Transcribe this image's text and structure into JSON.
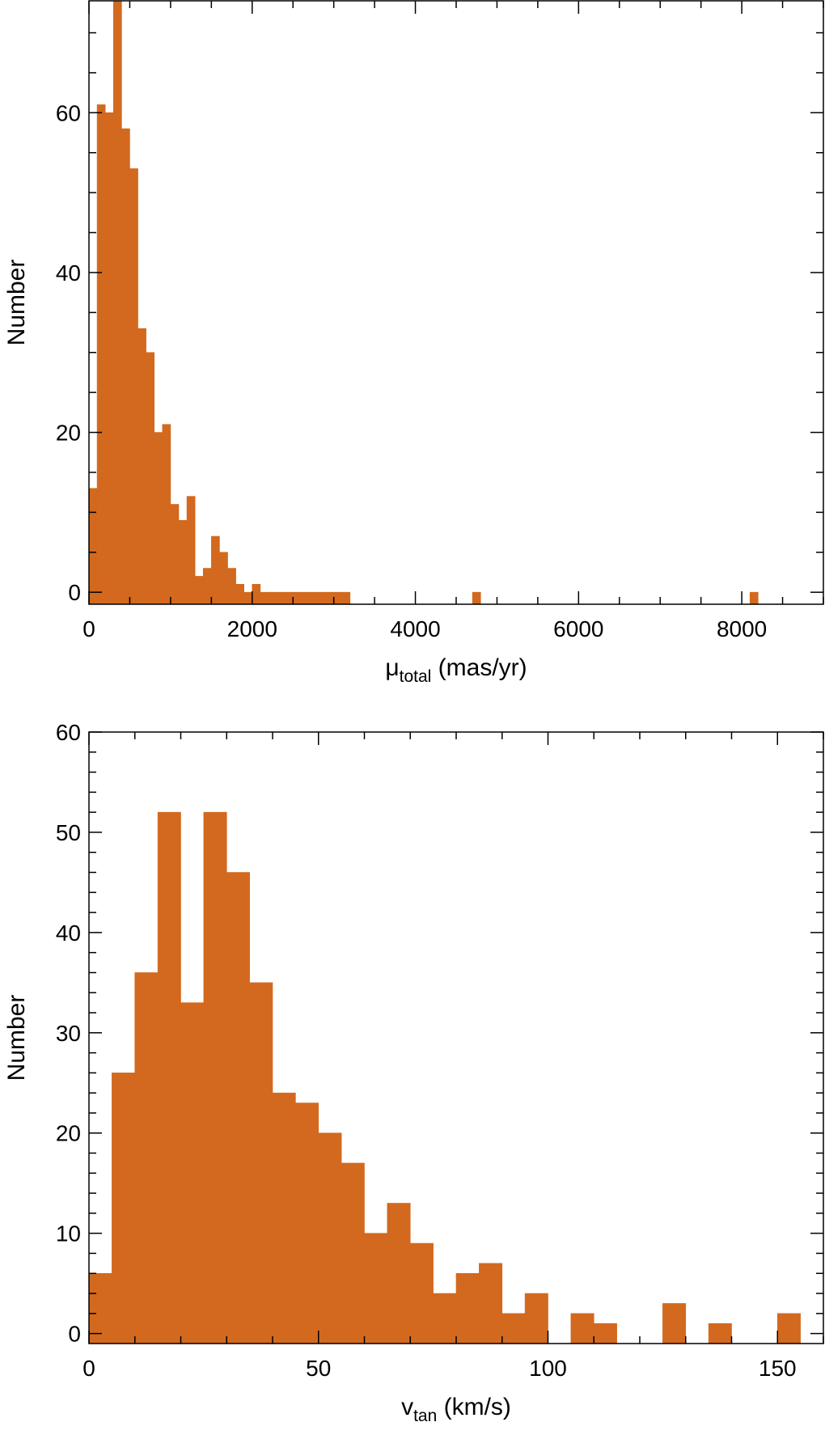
{
  "chart_data": [
    {
      "type": "bar",
      "id": "proper-motion-histogram",
      "title": "",
      "xlabel_main": "μ",
      "xlabel_sub": "total",
      "xlabel_rest": " (mas/yr)",
      "ylabel": "Number",
      "xlim": [
        0,
        9000
      ],
      "ylim": [
        -1.5,
        74
      ],
      "bin_width": 100,
      "x_ticks": [
        0,
        2000,
        4000,
        6000,
        8000
      ],
      "x_tick_labels": [
        "0",
        "2000",
        "4000",
        "6000",
        "8000"
      ],
      "x_minor_step": 500,
      "y_ticks": [
        0,
        20,
        40,
        60
      ],
      "y_tick_labels": [
        "0",
        "20",
        "40",
        "60"
      ],
      "y_minor_step": 5,
      "bins": [
        {
          "x": 0,
          "count": 13
        },
        {
          "x": 100,
          "count": 61
        },
        {
          "x": 200,
          "count": 60
        },
        {
          "x": 300,
          "count": 74
        },
        {
          "x": 400,
          "count": 58
        },
        {
          "x": 500,
          "count": 53
        },
        {
          "x": 600,
          "count": 33
        },
        {
          "x": 700,
          "count": 30
        },
        {
          "x": 800,
          "count": 20
        },
        {
          "x": 900,
          "count": 21
        },
        {
          "x": 1000,
          "count": 11
        },
        {
          "x": 1100,
          "count": 9
        },
        {
          "x": 1200,
          "count": 12
        },
        {
          "x": 1300,
          "count": 2
        },
        {
          "x": 1400,
          "count": 3
        },
        {
          "x": 1500,
          "count": 7
        },
        {
          "x": 1600,
          "count": 5
        },
        {
          "x": 1700,
          "count": 3
        },
        {
          "x": 1800,
          "count": 1
        },
        {
          "x": 1900,
          "count": 0
        },
        {
          "x": 2000,
          "count": 1
        },
        {
          "x": 2100,
          "count": 0
        },
        {
          "x": 2200,
          "count": 0
        },
        {
          "x": 2300,
          "count": 0
        },
        {
          "x": 2400,
          "count": 0
        },
        {
          "x": 2500,
          "count": 0
        },
        {
          "x": 2600,
          "count": 0
        },
        {
          "x": 2700,
          "count": 0
        },
        {
          "x": 2800,
          "count": 0
        },
        {
          "x": 2900,
          "count": 0
        },
        {
          "x": 3000,
          "count": 0
        },
        {
          "x": 3100,
          "count": 0
        },
        {
          "x": 4700,
          "count": 0
        },
        {
          "x": 8100,
          "count": 0
        }
      ],
      "bar_color": "#d2691e",
      "grid": false
    },
    {
      "type": "bar",
      "id": "tangential-velocity-histogram",
      "title": "",
      "xlabel_main": "v",
      "xlabel_sub": "tan",
      "xlabel_rest": " (km/s)",
      "ylabel": "Number",
      "xlim": [
        0,
        160
      ],
      "ylim": [
        -1,
        60
      ],
      "bin_width": 5,
      "x_ticks": [
        0,
        50,
        100,
        150
      ],
      "x_tick_labels": [
        "0",
        "50",
        "100",
        "150"
      ],
      "x_minor_step": 10,
      "y_ticks": [
        0,
        10,
        20,
        30,
        40,
        50,
        60
      ],
      "y_tick_labels": [
        "0",
        "10",
        "20",
        "30",
        "40",
        "50",
        "60"
      ],
      "y_minor_step": 2,
      "bins": [
        {
          "x": 0,
          "count": 6
        },
        {
          "x": 5,
          "count": 26
        },
        {
          "x": 10,
          "count": 36
        },
        {
          "x": 15,
          "count": 52
        },
        {
          "x": 20,
          "count": 33
        },
        {
          "x": 25,
          "count": 52
        },
        {
          "x": 30,
          "count": 46
        },
        {
          "x": 35,
          "count": 35
        },
        {
          "x": 40,
          "count": 24
        },
        {
          "x": 45,
          "count": 23
        },
        {
          "x": 50,
          "count": 20
        },
        {
          "x": 55,
          "count": 17
        },
        {
          "x": 60,
          "count": 10
        },
        {
          "x": 65,
          "count": 13
        },
        {
          "x": 70,
          "count": 9
        },
        {
          "x": 75,
          "count": 4
        },
        {
          "x": 80,
          "count": 6
        },
        {
          "x": 85,
          "count": 7
        },
        {
          "x": 90,
          "count": 2
        },
        {
          "x": 95,
          "count": 4
        },
        {
          "x": 105,
          "count": 2
        },
        {
          "x": 110,
          "count": 1
        },
        {
          "x": 125,
          "count": 3
        },
        {
          "x": 135,
          "count": 1
        },
        {
          "x": 150,
          "count": 2
        }
      ],
      "bar_color": "#d2691e",
      "grid": false
    }
  ]
}
